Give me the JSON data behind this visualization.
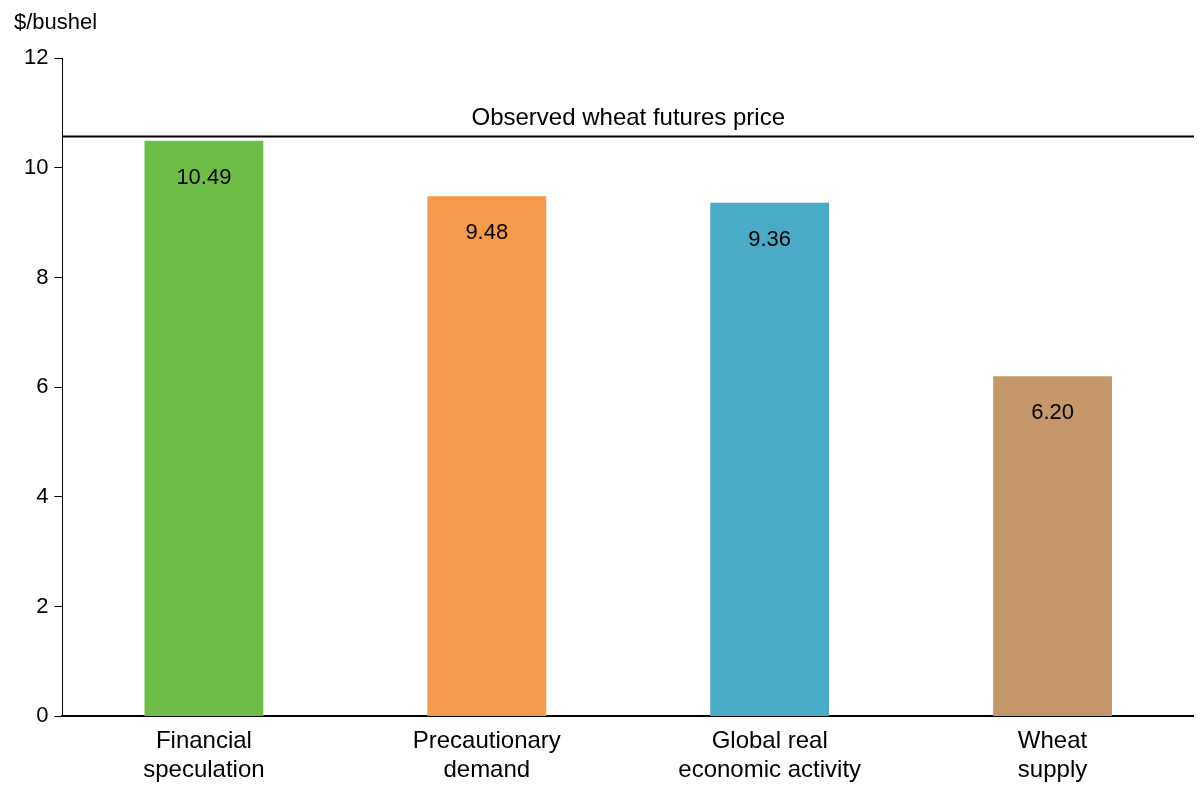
{
  "chart_data": {
    "type": "bar",
    "ylabel": "$/bushel",
    "categories": [
      "Financial speculation",
      "Precautionary demand",
      "Global real economic activity",
      "Wheat supply"
    ],
    "values": [
      10.49,
      9.48,
      9.36,
      6.2
    ],
    "value_labels": [
      "10.49",
      "9.48",
      "9.36",
      "6.20"
    ],
    "colors": [
      "#6dbd47",
      "#f5994a",
      "#49abc6",
      "#c4986a"
    ],
    "ylim": [
      0,
      12
    ],
    "yticks": [
      0,
      2,
      4,
      6,
      8,
      10,
      12
    ],
    "grid": false,
    "legend": false,
    "ref_lines": [
      {
        "axis": "y",
        "value": 10.57,
        "label": "Observed wheat futures price",
        "color": "#000000"
      }
    ]
  }
}
